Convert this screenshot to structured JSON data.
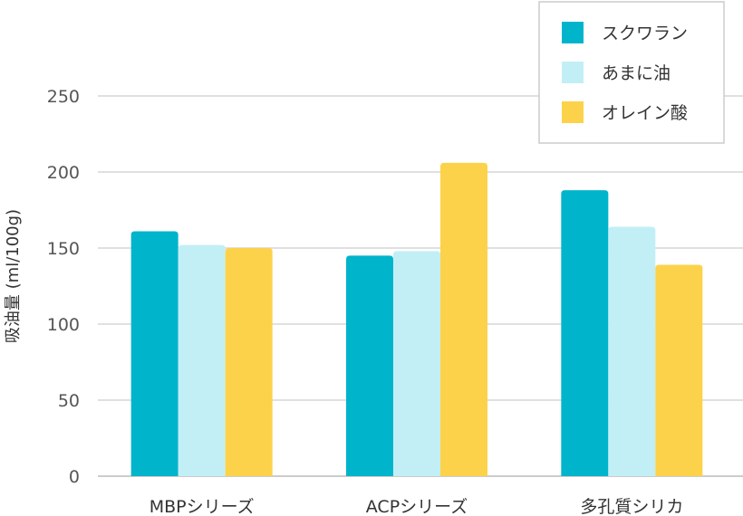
{
  "chart_data": {
    "type": "bar",
    "title": "",
    "xlabel": "",
    "ylabel": "吸油量 (ml/100g)",
    "ylim": [
      0,
      250
    ],
    "yticks": [
      0,
      50,
      100,
      150,
      200,
      250
    ],
    "grid": true,
    "legend_position": "top-right",
    "categories": [
      "MBPシリーズ",
      "ACPシリーズ",
      "多孔質シリカ"
    ],
    "series": [
      {
        "name": "スクワラン",
        "color": "#00b4cb",
        "values": [
          161,
          145,
          188
        ]
      },
      {
        "name": "あまに油",
        "color": "#c2eff6",
        "values": [
          152,
          148,
          164
        ]
      },
      {
        "name": "オレイン酸",
        "color": "#fdd24b",
        "values": [
          150,
          206,
          139
        ]
      }
    ]
  }
}
